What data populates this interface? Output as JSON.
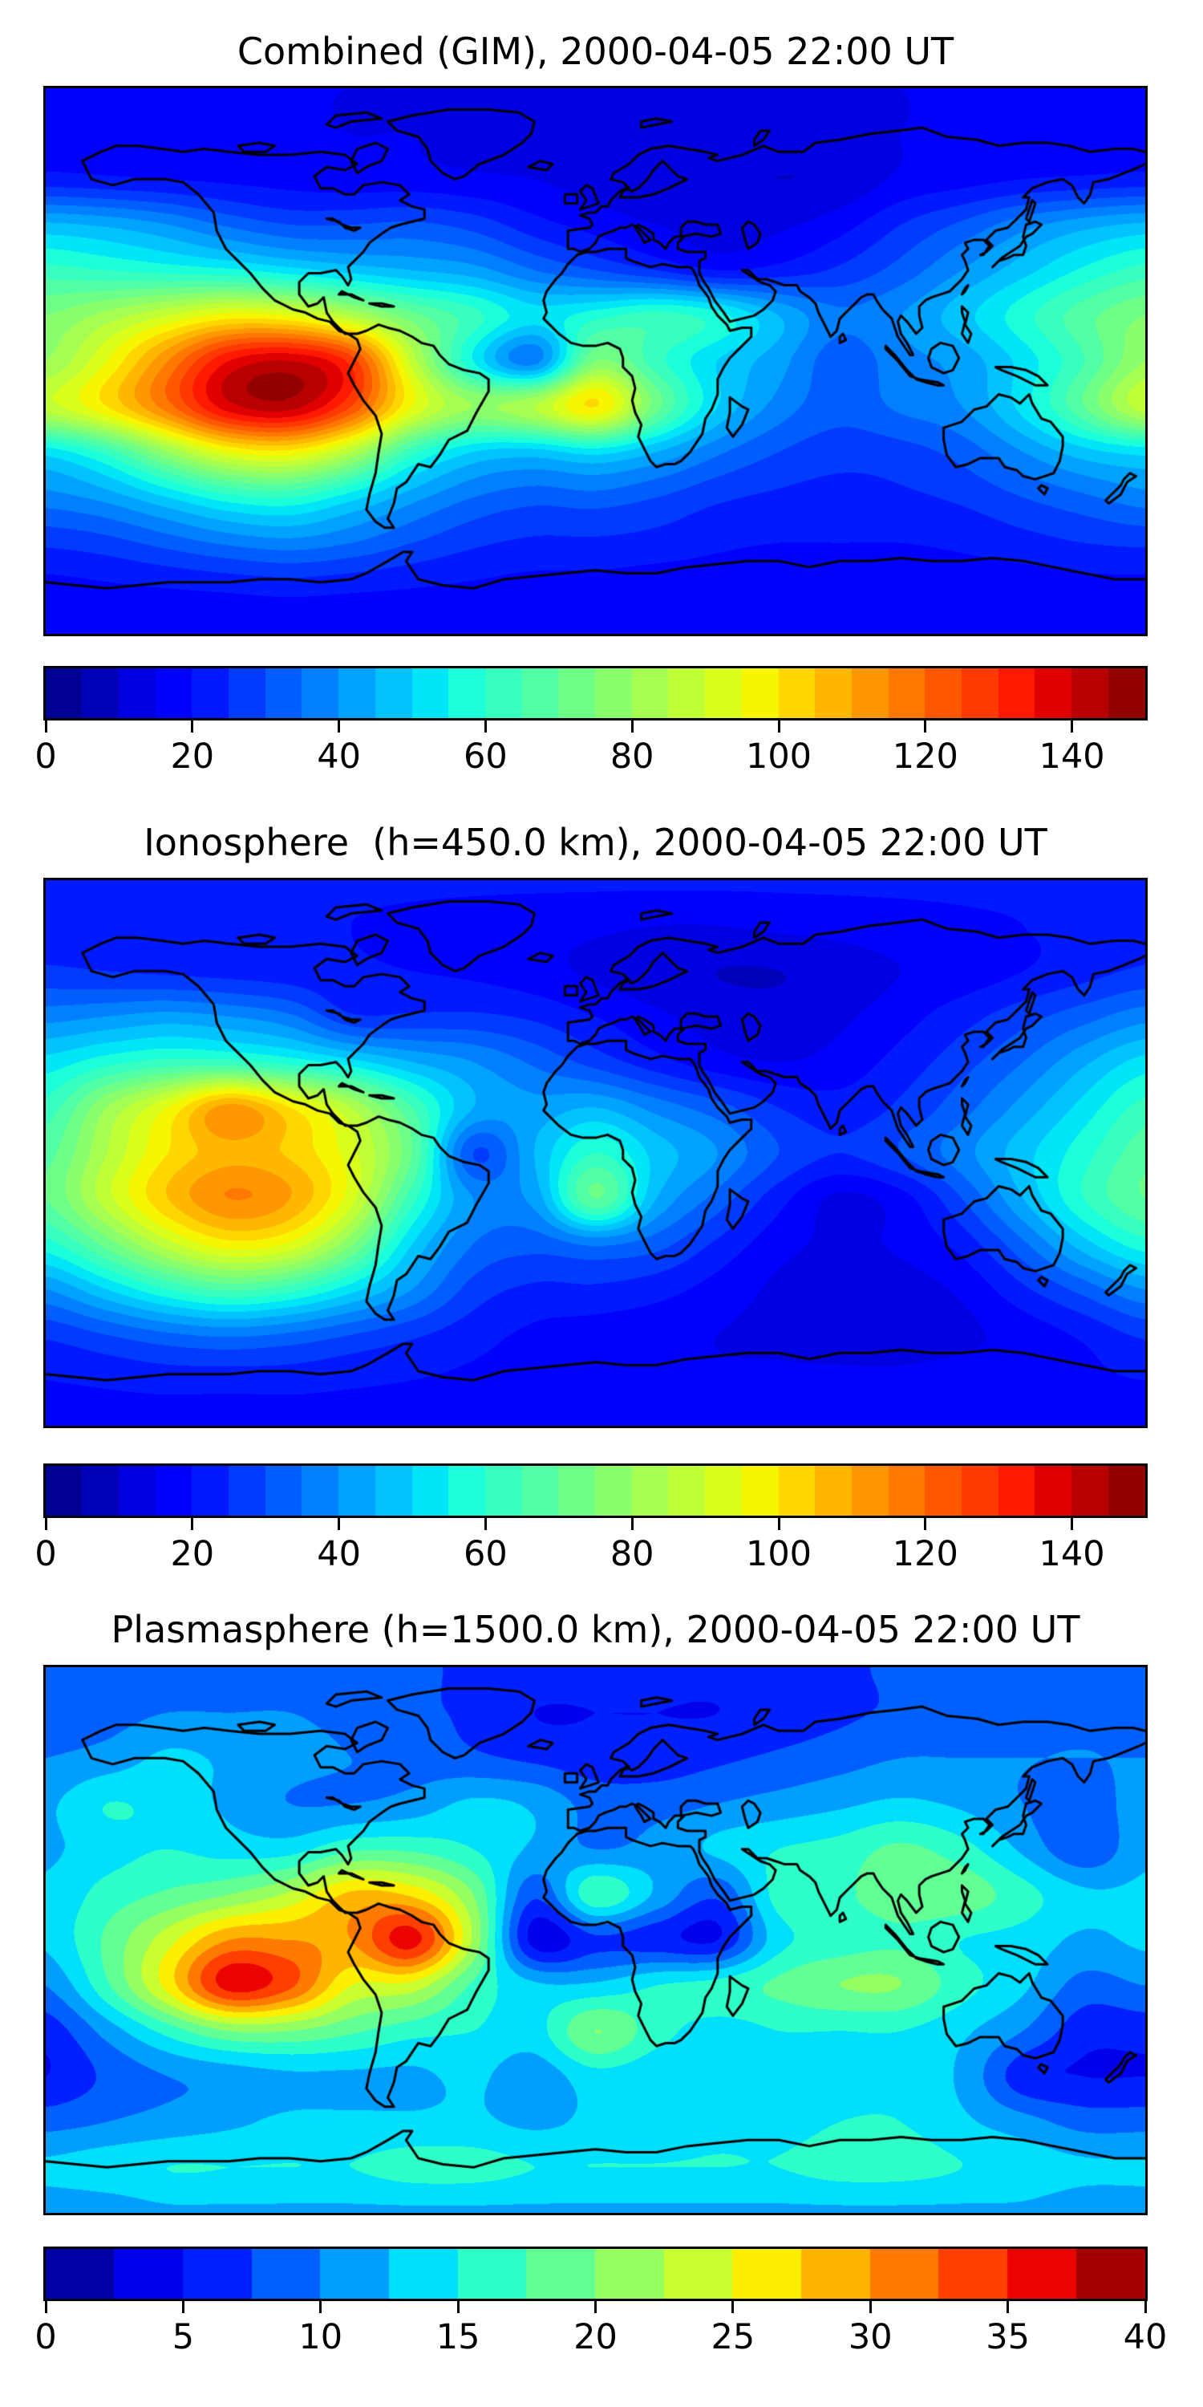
{
  "page": {
    "background": "#ffffff",
    "accent_black": "#000000"
  },
  "chart_data": [
    {
      "type": "heatmap",
      "title": "Combined (GIM), 2000-04-05 22:00 UT",
      "projection": "equirectangular",
      "lon_range": [
        -180,
        180
      ],
      "lat_range": [
        -90,
        90
      ],
      "colormap": "jet",
      "coastlines": true,
      "levels": {
        "min": 0,
        "max": 150,
        "step": 5
      },
      "colorbar_ticks": [
        0,
        20,
        40,
        60,
        80,
        100,
        120,
        140
      ],
      "colorbar_position": "bottom",
      "grid_lons": [
        -180,
        -160,
        -140,
        -120,
        -100,
        -80,
        -60,
        -40,
        -20,
        0,
        20,
        40,
        60,
        80,
        100,
        120,
        140,
        160,
        180
      ],
      "grid_lats": [
        90,
        75,
        60,
        45,
        30,
        15,
        0,
        -15,
        -30,
        -45,
        -60,
        -75,
        -90
      ],
      "values": [
        [
          15,
          15,
          15,
          15,
          15,
          15,
          15,
          15,
          15,
          15,
          15,
          15,
          15,
          15,
          15,
          15,
          15,
          15,
          15
        ],
        [
          17,
          17,
          16,
          16,
          16,
          15,
          15,
          14,
          13,
          12,
          12,
          12,
          13,
          14,
          15,
          16,
          16,
          17,
          17
        ],
        [
          22,
          21,
          20,
          19,
          18,
          17,
          17,
          16,
          15,
          13,
          12,
          11,
          10,
          11,
          16,
          18,
          20,
          21,
          22
        ],
        [
          46,
          44,
          40,
          34,
          30,
          30,
          31,
          28,
          22,
          18,
          15,
          13,
          14,
          18,
          25,
          31,
          38,
          43,
          46
        ],
        [
          62,
          60,
          58,
          56,
          52,
          48,
          45,
          42,
          35,
          30,
          25,
          20,
          22,
          26,
          32,
          40,
          48,
          56,
          62
        ],
        [
          75,
          82,
          90,
          97,
          95,
          85,
          72,
          62,
          52,
          58,
          62,
          57,
          45,
          36,
          40,
          48,
          58,
          68,
          75
        ],
        [
          80,
          95,
          115,
          135,
          140,
          128,
          88,
          55,
          38,
          75,
          62,
          50,
          42,
          32,
          38,
          42,
          52,
          65,
          80
        ],
        [
          88,
          100,
          118,
          138,
          142,
          125,
          95,
          80,
          85,
          100,
          72,
          50,
          38,
          32,
          36,
          40,
          52,
          70,
          88
        ],
        [
          52,
          62,
          80,
          95,
          98,
          85,
          62,
          50,
          48,
          52,
          45,
          36,
          30,
          27,
          28,
          32,
          40,
          48,
          52
        ],
        [
          38,
          42,
          50,
          58,
          60,
          52,
          42,
          35,
          32,
          33,
          30,
          26,
          24,
          23,
          24,
          26,
          30,
          34,
          38
        ],
        [
          26,
          28,
          32,
          36,
          38,
          35,
          30,
          26,
          24,
          24,
          23,
          21,
          20,
          20,
          20,
          21,
          23,
          25,
          26
        ],
        [
          18,
          19,
          20,
          21,
          22,
          21,
          20,
          19,
          18,
          18,
          17,
          17,
          16,
          16,
          16,
          17,
          17,
          18,
          18
        ],
        [
          15,
          15,
          15,
          15,
          15,
          15,
          15,
          15,
          15,
          15,
          15,
          15,
          15,
          15,
          15,
          15,
          15,
          15,
          15
        ]
      ]
    },
    {
      "type": "heatmap",
      "title": "Ionosphere  (h=450.0 km), 2000-04-05 22:00 UT",
      "projection": "equirectangular",
      "lon_range": [
        -180,
        180
      ],
      "lat_range": [
        -90,
        90
      ],
      "colormap": "jet",
      "coastlines": true,
      "levels": {
        "min": 0,
        "max": 150,
        "step": 5
      },
      "colorbar_ticks": [
        0,
        20,
        40,
        60,
        80,
        100,
        120,
        140
      ],
      "colorbar_position": "bottom",
      "grid_lons": [
        -180,
        -160,
        -140,
        -120,
        -100,
        -80,
        -60,
        -40,
        -20,
        0,
        20,
        40,
        60,
        80,
        100,
        120,
        140,
        160,
        180
      ],
      "grid_lats": [
        90,
        75,
        60,
        45,
        30,
        15,
        0,
        -15,
        -30,
        -45,
        -60,
        -75,
        -90
      ],
      "values": [
        [
          21,
          21,
          21,
          21,
          21,
          21,
          21,
          21,
          21,
          21,
          21,
          21,
          21,
          21,
          21,
          21,
          21,
          21,
          21
        ],
        [
          22,
          22,
          22,
          21,
          21,
          20,
          19,
          18,
          17,
          16,
          15,
          15,
          16,
          17,
          18,
          19,
          20,
          21,
          22
        ],
        [
          26,
          25,
          24,
          23,
          22,
          21,
          20,
          19,
          17,
          14,
          12,
          10,
          10,
          12,
          15,
          17,
          20,
          23,
          26
        ],
        [
          38,
          40,
          42,
          40,
          36,
          26,
          26,
          26,
          24,
          20,
          16,
          13,
          12,
          14,
          18,
          23,
          28,
          33,
          38
        ],
        [
          52,
          58,
          62,
          62,
          58,
          52,
          45,
          40,
          34,
          28,
          22,
          17,
          15,
          17,
          22,
          28,
          35,
          44,
          52
        ],
        [
          62,
          80,
          95,
          112,
          100,
          85,
          65,
          45,
          42,
          45,
          38,
          32,
          25,
          22,
          26,
          33,
          42,
          52,
          62
        ],
        [
          68,
          85,
          100,
          108,
          104,
          92,
          70,
          30,
          45,
          60,
          48,
          40,
          30,
          25,
          30,
          38,
          48,
          58,
          68
        ],
        [
          70,
          88,
          105,
          115,
          110,
          92,
          62,
          40,
          42,
          70,
          45,
          33,
          22,
          14,
          18,
          30,
          45,
          60,
          70
        ],
        [
          58,
          72,
          88,
          98,
          94,
          76,
          50,
          35,
          32,
          36,
          32,
          24,
          17,
          14,
          16,
          22,
          34,
          48,
          58
        ],
        [
          40,
          50,
          60,
          66,
          62,
          52,
          40,
          28,
          24,
          24,
          22,
          18,
          14,
          12,
          13,
          16,
          24,
          32,
          40
        ],
        [
          26,
          30,
          34,
          36,
          34,
          30,
          26,
          22,
          19,
          18,
          17,
          15,
          14,
          13,
          13,
          14,
          17,
          21,
          26
        ],
        [
          20,
          21,
          22,
          22,
          22,
          21,
          20,
          19,
          18,
          17,
          17,
          16,
          16,
          16,
          16,
          17,
          18,
          19,
          20
        ],
        [
          18,
          18,
          18,
          18,
          18,
          18,
          18,
          18,
          18,
          18,
          18,
          18,
          18,
          18,
          18,
          18,
          18,
          18,
          18
        ]
      ]
    },
    {
      "type": "heatmap",
      "title": "Plasmasphere (h=1500.0 km), 2000-04-05 22:00 UT",
      "projection": "equirectangular",
      "lon_range": [
        -180,
        180
      ],
      "lat_range": [
        -90,
        90
      ],
      "colormap": "jet",
      "coastlines": true,
      "levels": {
        "min": 0,
        "max": 40,
        "step": 2.5
      },
      "colorbar_ticks": [
        0,
        5,
        10,
        15,
        20,
        25,
        30,
        35,
        40
      ],
      "colorbar_position": "bottom",
      "grid_lons": [
        -180,
        -160,
        -140,
        -120,
        -100,
        -80,
        -60,
        -40,
        -20,
        0,
        20,
        40,
        60,
        80,
        100,
        120,
        140,
        160,
        180
      ],
      "grid_lats": [
        90,
        75,
        60,
        45,
        30,
        15,
        0,
        -15,
        -30,
        -45,
        -60,
        -75,
        -90
      ],
      "values": [
        [
          8,
          8,
          8,
          8,
          8,
          8,
          8,
          7,
          7,
          6,
          6,
          6,
          7,
          7,
          8,
          8,
          8,
          8,
          8
        ],
        [
          9,
          9,
          10,
          10,
          10,
          9,
          8,
          7,
          5,
          5,
          5,
          5,
          6,
          7,
          8,
          9,
          9,
          9,
          9
        ],
        [
          10,
          11,
          13,
          12,
          11,
          10,
          9,
          8,
          7,
          6,
          6,
          7,
          8,
          9,
          10,
          10,
          10,
          10,
          10
        ],
        [
          12,
          15,
          14,
          12,
          10,
          10,
          11,
          13,
          12,
          9,
          9,
          10,
          11,
          12,
          13,
          12,
          10,
          8,
          12
        ],
        [
          12,
          14,
          15,
          14,
          14,
          17,
          17,
          15,
          12,
          10,
          11,
          13,
          15,
          16,
          18,
          16,
          12,
          8,
          12
        ],
        [
          13,
          16,
          18,
          20,
          23,
          28,
          27,
          20,
          8,
          17,
          12,
          8,
          16,
          17,
          19,
          19,
          16,
          13,
          13
        ],
        [
          13,
          18,
          24,
          30,
          30,
          30,
          36,
          22,
          4,
          7,
          6,
          5,
          14,
          16,
          17,
          15,
          14,
          12,
          13
        ],
        [
          10,
          17,
          26,
          36,
          33,
          25,
          24,
          17,
          13,
          13,
          15,
          16,
          18,
          20,
          20,
          16,
          13,
          9,
          10
        ],
        [
          6,
          11,
          16,
          20,
          20,
          18,
          16,
          15,
          14,
          20,
          16,
          14,
          15,
          15,
          15,
          13,
          10,
          6,
          6
        ],
        [
          5,
          8,
          10,
          11,
          12,
          12,
          12,
          13,
          11,
          14,
          13,
          13,
          14,
          14,
          14,
          12,
          6,
          5,
          5
        ],
        [
          9,
          10,
          11,
          12,
          13,
          13,
          13,
          13,
          12,
          13,
          13,
          14,
          14,
          15,
          15,
          13,
          11,
          9,
          9
        ],
        [
          13,
          14,
          15,
          15,
          15,
          15,
          16,
          16,
          15,
          15,
          15,
          15,
          15,
          16,
          16,
          15,
          14,
          13,
          13
        ],
        [
          11,
          11,
          12,
          12,
          12,
          12,
          12,
          12,
          12,
          12,
          12,
          12,
          12,
          12,
          12,
          12,
          12,
          11,
          11
        ]
      ]
    }
  ]
}
